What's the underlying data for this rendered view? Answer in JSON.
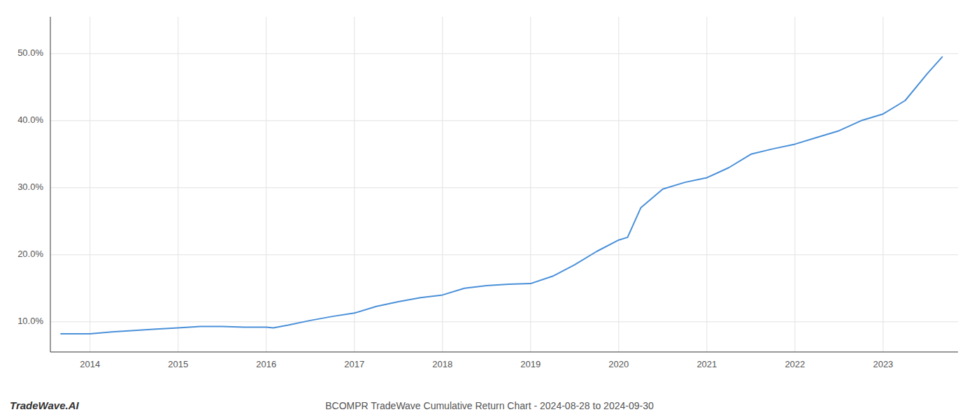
{
  "chart_data": {
    "type": "line",
    "title": "BCOMPR TradeWave Cumulative Return Chart - 2024-08-28 to 2024-09-30",
    "annotations": [
      "TradeWave.AI"
    ],
    "color": "#4a90d9",
    "x": [
      2013.67,
      2014.0,
      2014.25,
      2014.5,
      2014.75,
      2015.0,
      2015.25,
      2015.5,
      2015.75,
      2016.0,
      2016.08,
      2016.25,
      2016.5,
      2016.75,
      2017.0,
      2017.25,
      2017.5,
      2017.75,
      2018.0,
      2018.25,
      2018.5,
      2018.75,
      2019.0,
      2019.25,
      2019.5,
      2019.75,
      2020.0,
      2020.1,
      2020.25,
      2020.5,
      2020.75,
      2021.0,
      2021.25,
      2021.5,
      2021.75,
      2022.0,
      2022.25,
      2022.5,
      2022.75,
      2023.0,
      2023.25,
      2023.5,
      2023.67
    ],
    "values": [
      0.082,
      0.082,
      0.085,
      0.087,
      0.089,
      0.091,
      0.093,
      0.093,
      0.092,
      0.092,
      0.091,
      0.095,
      0.102,
      0.108,
      0.113,
      0.123,
      0.13,
      0.136,
      0.14,
      0.15,
      0.154,
      0.156,
      0.157,
      0.168,
      0.185,
      0.205,
      0.222,
      0.226,
      0.27,
      0.298,
      0.308,
      0.315,
      0.33,
      0.35,
      0.358,
      0.365,
      0.375,
      0.385,
      0.4,
      0.41,
      0.43,
      0.47,
      0.495
    ],
    "xlim": [
      2013.55,
      2023.85
    ],
    "ylim": [
      0.055,
      0.555
    ],
    "xticks": [
      2014,
      2015,
      2016,
      2017,
      2018,
      2019,
      2020,
      2021,
      2022,
      2023
    ],
    "yticks": [
      {
        "value": 0.1,
        "label": "10.0%"
      },
      {
        "value": 0.2,
        "label": "20.0%"
      },
      {
        "value": 0.3,
        "label": "30.0%"
      },
      {
        "value": 0.4,
        "label": "40.0%"
      },
      {
        "value": 0.5,
        "label": "50.0%"
      }
    ],
    "grid": true
  }
}
